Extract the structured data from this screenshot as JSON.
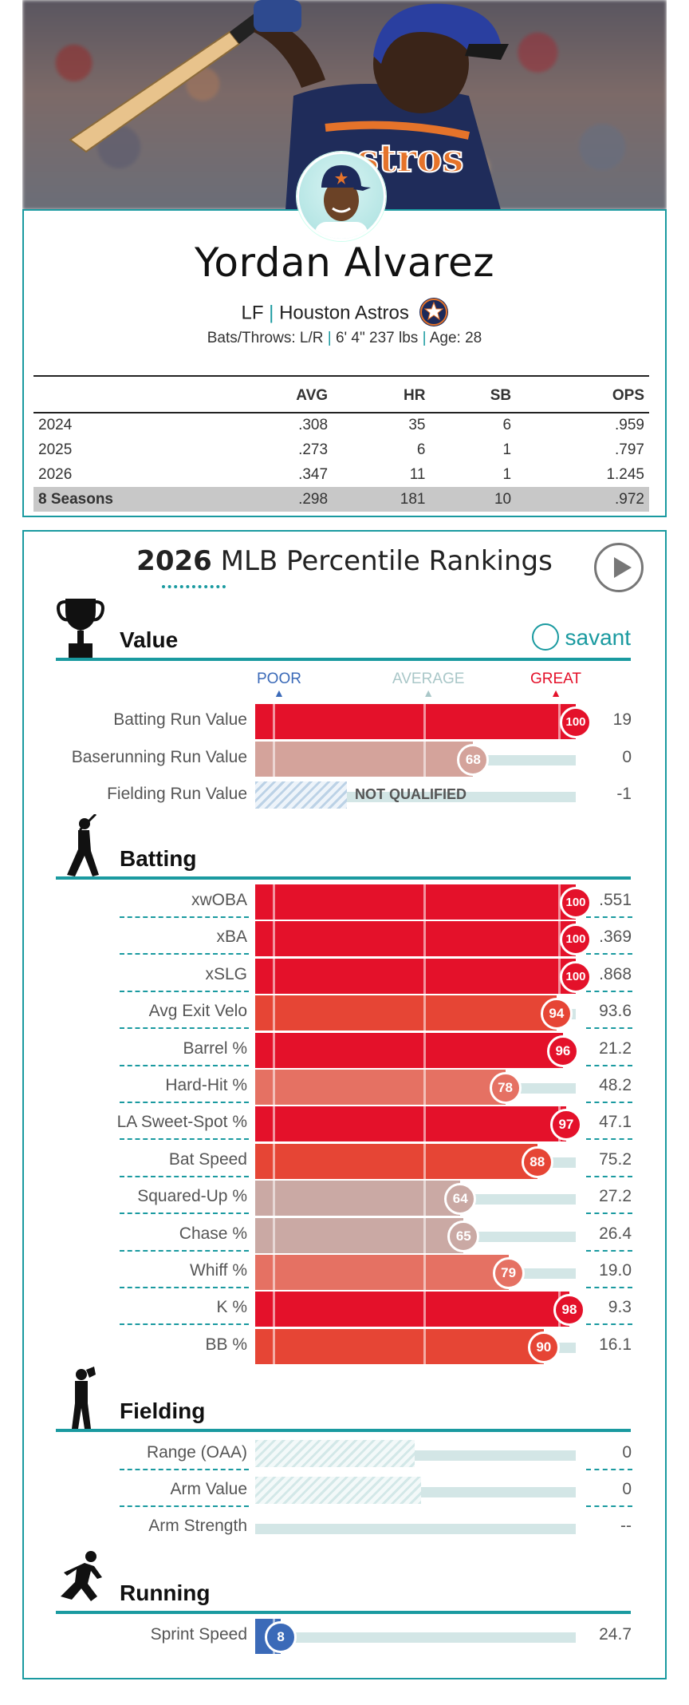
{
  "player": {
    "name": "Yordan Alvarez",
    "position": "LF",
    "team": "Houston Astros",
    "bio_prefix": "Bats/Throws: L/R",
    "bio_size": "6' 4\" 237 lbs",
    "bio_age": "Age: 28"
  },
  "stats_table": {
    "headers": [
      "",
      "AVG",
      "HR",
      "SB",
      "OPS"
    ],
    "rows": [
      [
        "2024",
        ".308",
        "35",
        "6",
        ".959"
      ],
      [
        "2025",
        ".273",
        "6",
        "1",
        ".797"
      ],
      [
        "2026",
        ".347",
        "11",
        "1",
        "1.245"
      ],
      [
        "8 Seasons",
        ".298",
        "181",
        "10",
        ".972"
      ]
    ]
  },
  "rankings": {
    "year": "2026",
    "title": "MLB Percentile Rankings",
    "scale": {
      "poor": "POOR",
      "average": "AVERAGE",
      "great": "GREAT"
    },
    "brand": "savant",
    "not_qualified": "NOT QUALIFIED"
  },
  "colors": {
    "teal": "#1a9aa0",
    "red_strong": "#e4112a",
    "blue_poor": "#3b6ab8"
  },
  "sections": {
    "value": {
      "title": "Value",
      "rows": [
        {
          "label": "Batting Run Value",
          "pct": 100,
          "value": "19"
        },
        {
          "label": "Baserunning Run Value",
          "pct": 68,
          "value": "0"
        },
        {
          "label": "Fielding Run Value",
          "pct": null,
          "value": "-1"
        }
      ]
    },
    "batting": {
      "title": "Batting",
      "rows": [
        {
          "label": "xwOBA",
          "pct": 100,
          "value": ".551"
        },
        {
          "label": "xBA",
          "pct": 100,
          "value": ".369"
        },
        {
          "label": "xSLG",
          "pct": 100,
          "value": ".868"
        },
        {
          "label": "Avg Exit Velo",
          "pct": 94,
          "value": "93.6"
        },
        {
          "label": "Barrel %",
          "pct": 96,
          "value": "21.2"
        },
        {
          "label": "Hard-Hit %",
          "pct": 78,
          "value": "48.2"
        },
        {
          "label": "LA Sweet-Spot %",
          "pct": 97,
          "value": "47.1"
        },
        {
          "label": "Bat Speed",
          "pct": 88,
          "value": "75.2"
        },
        {
          "label": "Squared-Up %",
          "pct": 64,
          "value": "27.2"
        },
        {
          "label": "Chase %",
          "pct": 65,
          "value": "26.4"
        },
        {
          "label": "Whiff %",
          "pct": 79,
          "value": "19.0"
        },
        {
          "label": "K %",
          "pct": 98,
          "value": "9.3"
        },
        {
          "label": "BB %",
          "pct": 90,
          "value": "16.1"
        }
      ]
    },
    "fielding": {
      "title": "Fielding",
      "rows": [
        {
          "label": "Range (OAA)",
          "pct": null,
          "value": "0"
        },
        {
          "label": "Arm Value",
          "pct": null,
          "value": "0"
        },
        {
          "label": "Arm Strength",
          "pct": null,
          "value": "--"
        }
      ]
    },
    "running": {
      "title": "Running",
      "rows": [
        {
          "label": "Sprint Speed",
          "pct": 8,
          "value": "24.7"
        }
      ]
    }
  }
}
